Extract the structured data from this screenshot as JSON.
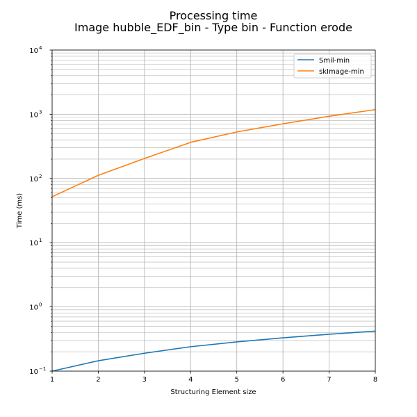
{
  "chart_data": {
    "type": "line",
    "title": "Processing time",
    "subtitle": "Image hubble_EDF_bin - Type bin - Function erode",
    "xlabel": "Structuring Element size",
    "ylabel": "Time (ms)",
    "x": [
      1,
      2,
      3,
      4,
      5,
      6,
      7,
      8
    ],
    "xlim": [
      1,
      8
    ],
    "ylim": [
      0.1,
      10000
    ],
    "yscale": "log",
    "grid": true,
    "legend_position": "top-right",
    "x_ticks": [
      "1",
      "2",
      "3",
      "4",
      "5",
      "6",
      "7",
      "8"
    ],
    "y_ticks": [
      {
        "base": "10",
        "exp": "−1"
      },
      {
        "base": "10",
        "exp": "0"
      },
      {
        "base": "10",
        "exp": "1"
      },
      {
        "base": "10",
        "exp": "2"
      },
      {
        "base": "10",
        "exp": "3"
      },
      {
        "base": "10",
        "exp": "4"
      }
    ],
    "series": [
      {
        "name": "Smil-min",
        "color": "#1f77b4",
        "values": [
          0.1,
          0.145,
          0.19,
          0.24,
          0.285,
          0.33,
          0.375,
          0.42
        ]
      },
      {
        "name": "skImage-min",
        "color": "#ff7f0e",
        "values": [
          52,
          112,
          205,
          365,
          530,
          710,
          930,
          1180
        ]
      }
    ]
  }
}
